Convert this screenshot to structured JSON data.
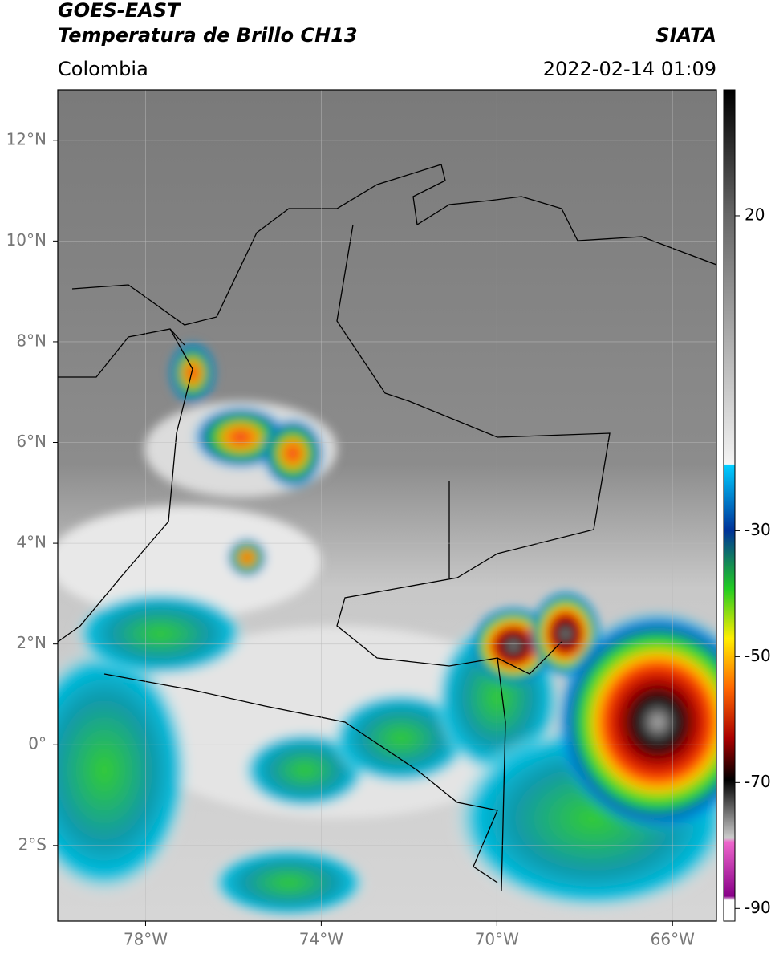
{
  "header": {
    "title": "GOES-EAST",
    "subtitle": "Temperatura de Brillo CH13",
    "region": "Colombia",
    "source": "SIATA",
    "datetime": "2022-02-14 01:09"
  },
  "map": {
    "xlim": [
      -80,
      -65
    ],
    "ylim": [
      -3.5,
      13
    ],
    "xticks": [
      {
        "value": -78,
        "label": "78°W"
      },
      {
        "value": -74,
        "label": "74°W"
      },
      {
        "value": -70,
        "label": "70°W"
      },
      {
        "value": -66,
        "label": "66°W"
      }
    ],
    "yticks": [
      {
        "value": 12,
        "label": "12°N"
      },
      {
        "value": 10,
        "label": "10°N"
      },
      {
        "value": 8,
        "label": "8°N"
      },
      {
        "value": 6,
        "label": "6°N"
      },
      {
        "value": 4,
        "label": "4°N"
      },
      {
        "value": 2,
        "label": "2°N"
      },
      {
        "value": 0,
        "label": "0°"
      },
      {
        "value": -2,
        "label": "2°S"
      }
    ]
  },
  "colorbar": {
    "lim": [
      -92,
      40
    ],
    "ticks": [
      20,
      -30,
      -50,
      -70,
      -90
    ]
  }
}
